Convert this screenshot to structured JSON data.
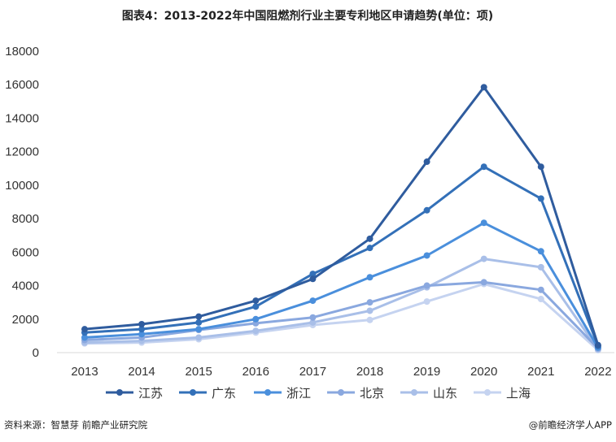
{
  "chart_data": {
    "type": "line",
    "title": "图表4：2013-2022年中国阻燃剂行业主要专利地区申请趋势(单位：项)",
    "x": [
      "2013",
      "2014",
      "2015",
      "2016",
      "2017",
      "2018",
      "2019",
      "2020",
      "2021",
      "2022"
    ],
    "ylim": [
      0,
      18000
    ],
    "yticks": [
      0,
      2000,
      4000,
      6000,
      8000,
      10000,
      12000,
      14000,
      16000,
      18000
    ],
    "grid": false,
    "legend": "bottom",
    "series": [
      {
        "name": "江苏",
        "color": "#2f5c9e",
        "values": [
          1400,
          1700,
          2150,
          3100,
          4400,
          6800,
          11400,
          15850,
          11100,
          450
        ]
      },
      {
        "name": "广东",
        "color": "#3370b8",
        "values": [
          1200,
          1400,
          1800,
          2750,
          4700,
          6250,
          8500,
          11100,
          9200,
          400
        ]
      },
      {
        "name": "浙江",
        "color": "#4a8fdc",
        "values": [
          900,
          1100,
          1400,
          2000,
          3100,
          4500,
          5800,
          7750,
          6050,
          300
        ]
      },
      {
        "name": "北京",
        "color": "#8aa8df",
        "values": [
          750,
          900,
          1350,
          1750,
          2100,
          3000,
          4000,
          4200,
          3750,
          250
        ]
      },
      {
        "name": "山东",
        "color": "#a9bfe8",
        "values": [
          600,
          700,
          900,
          1300,
          1800,
          2500,
          3900,
          5600,
          5100,
          200
        ]
      },
      {
        "name": "上海",
        "color": "#c5d3f0",
        "values": [
          550,
          600,
          800,
          1200,
          1650,
          1950,
          3050,
          4100,
          3200,
          150
        ]
      }
    ]
  },
  "footer": {
    "source": "资料来源：智慧芽 前瞻产业研究院",
    "brand": "@前瞻经济学人APP"
  }
}
